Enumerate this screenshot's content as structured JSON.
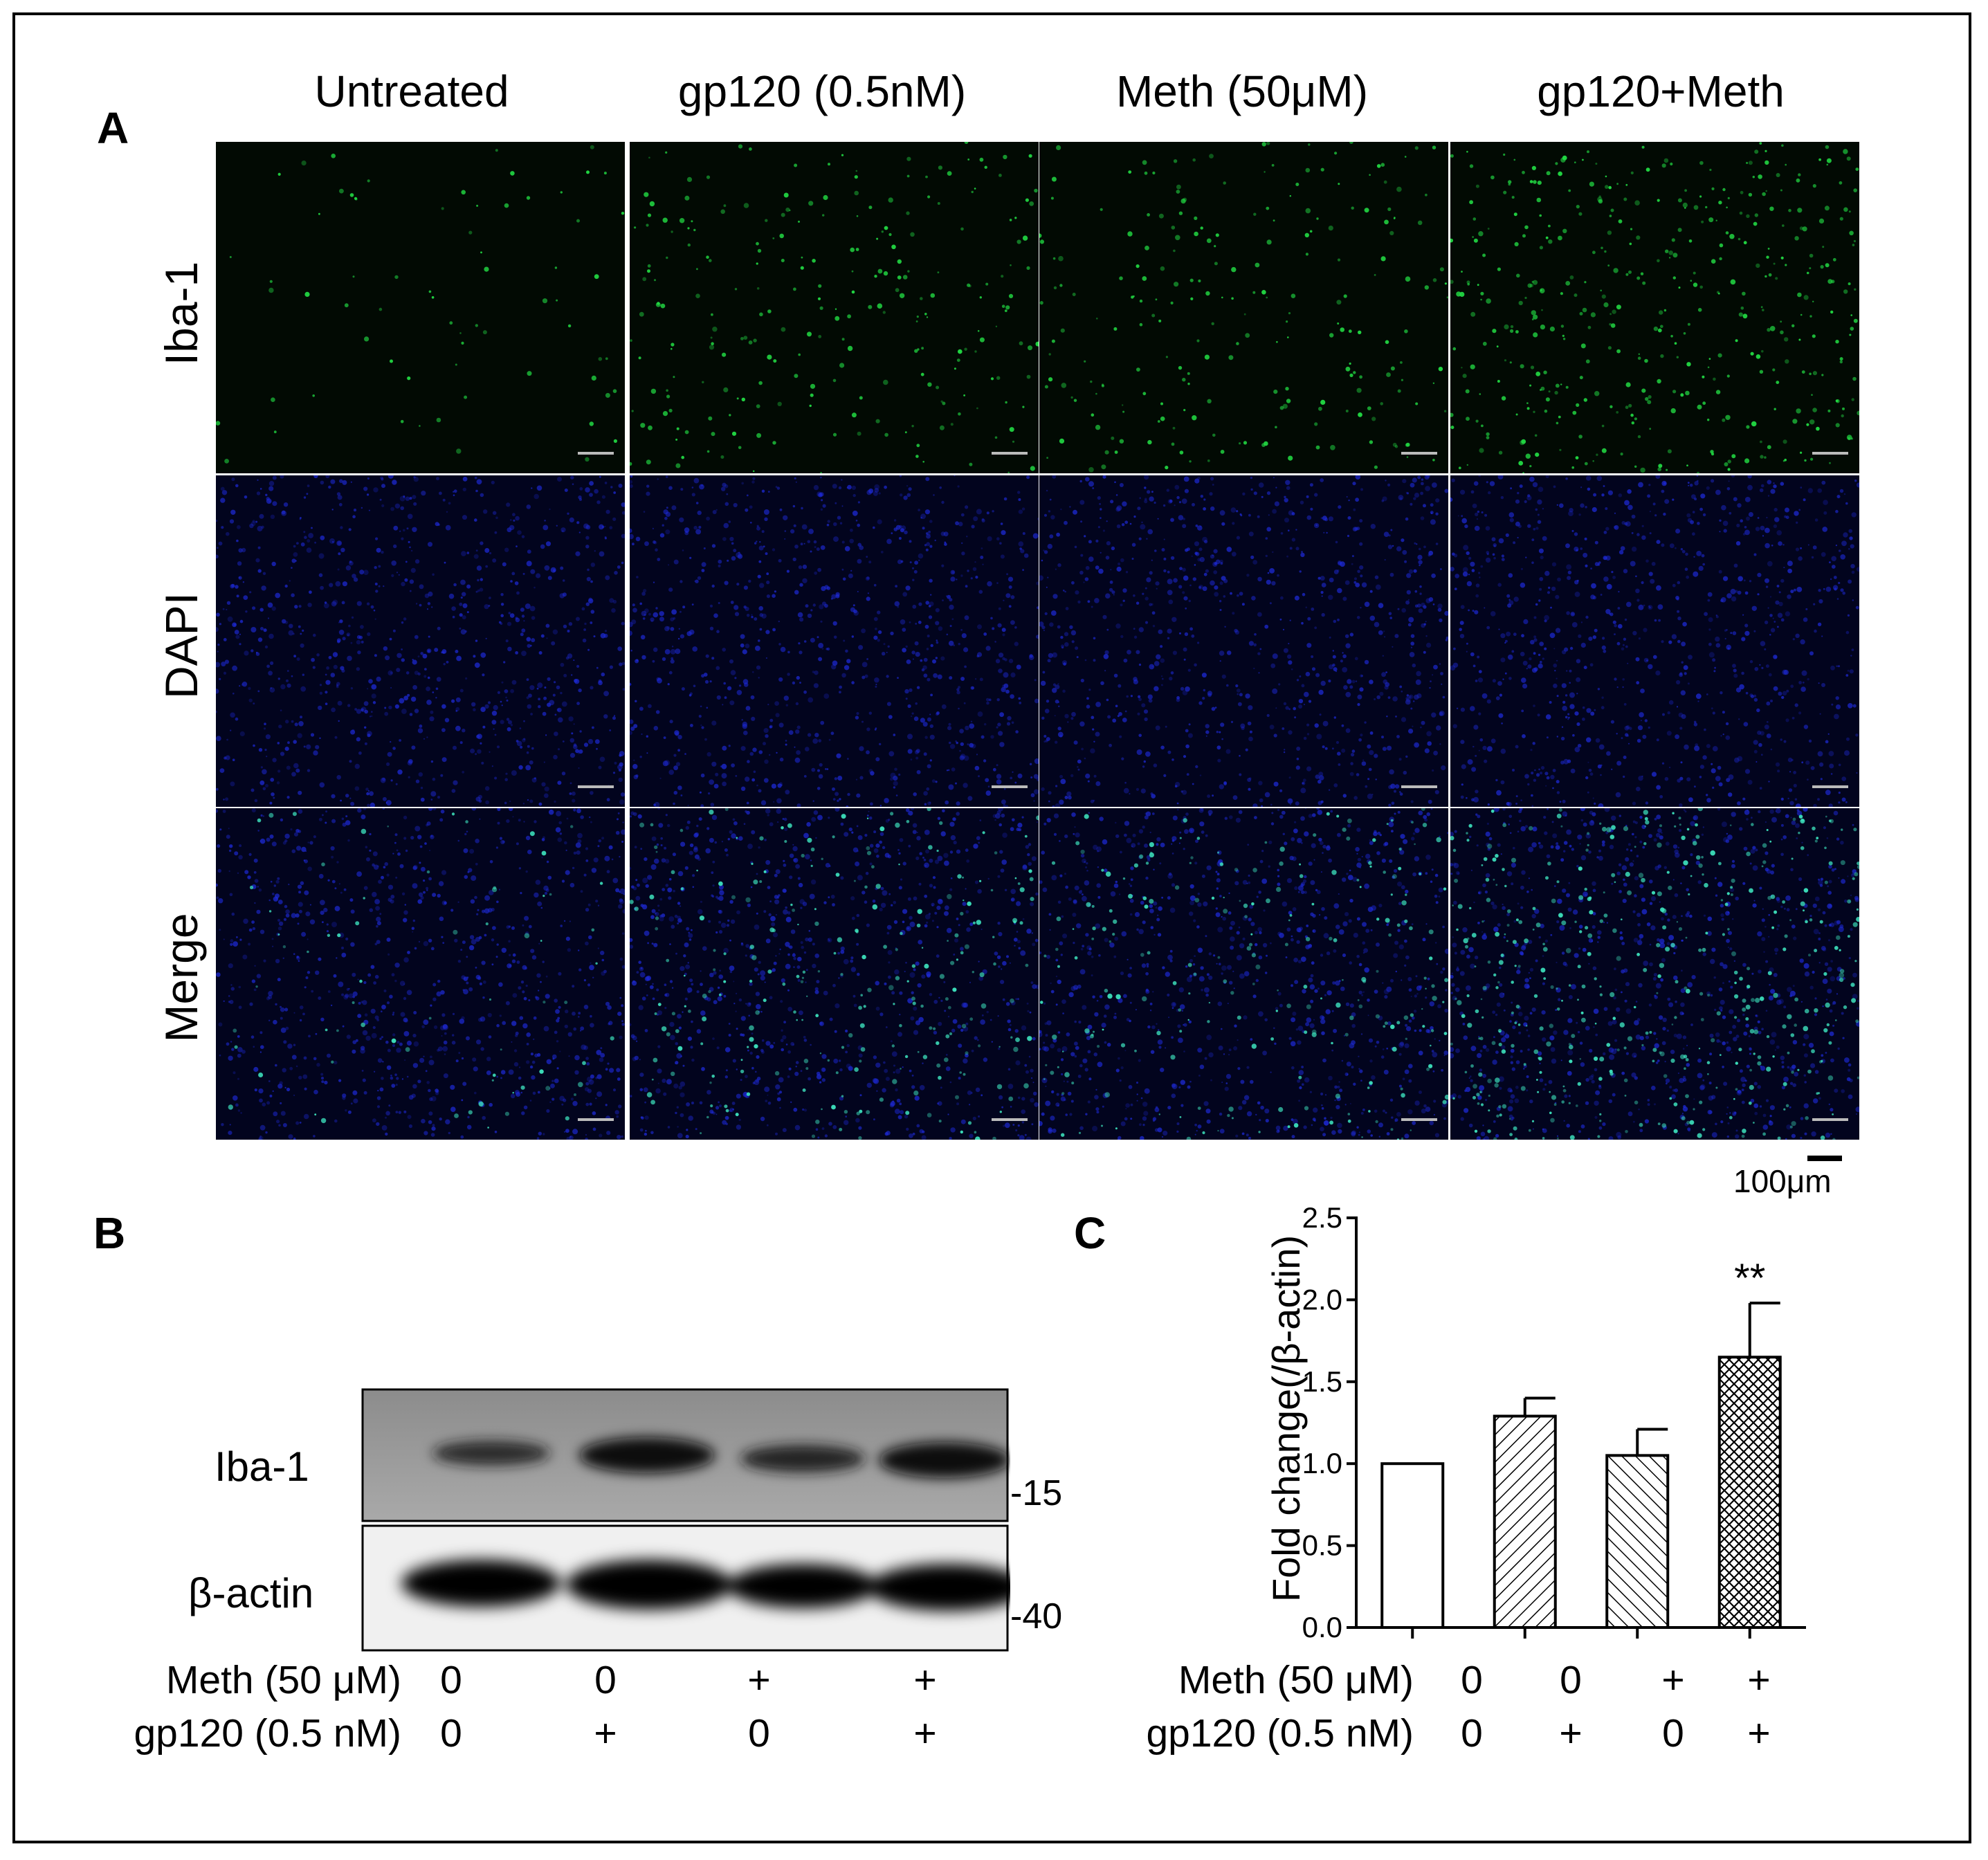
{
  "panels": {
    "a": {
      "letter": "A",
      "columns": [
        "Untreated",
        "gp120 (0.5nM)",
        "Meth (50μM)",
        "gp120+Meth"
      ],
      "rows": [
        "Iba-1",
        "DAPI",
        "Merge"
      ],
      "scale_bar_label": "100μm"
    },
    "b": {
      "letter": "B",
      "bands": [
        {
          "label": "Iba-1",
          "marker": "-15"
        },
        {
          "label": "β-actin",
          "marker": "-40"
        }
      ],
      "conditions": [
        {
          "label": "Meth (50 μM)",
          "values": [
            "0",
            "0",
            "+",
            "+"
          ]
        },
        {
          "label": "gp120 (0.5 nM)",
          "values": [
            "0",
            "+",
            "0",
            "+"
          ]
        }
      ]
    },
    "c": {
      "letter": "C",
      "conditions": [
        {
          "label": "Meth (50 μM)",
          "values": [
            "0",
            "0",
            "+",
            "+"
          ]
        },
        {
          "label": "gp120 (0.5 nM)",
          "values": [
            "0",
            "+",
            "0",
            "+"
          ]
        }
      ]
    }
  },
  "chart_data": {
    "type": "bar",
    "ylabel": "Fold change(/β-actin)",
    "ylim": [
      0,
      2.5
    ],
    "yticks": [
      "0.0",
      "0.5",
      "1.0",
      "1.5",
      "2.0",
      "2.5"
    ],
    "values": [
      1.0,
      1.29,
      1.05,
      1.65
    ],
    "errors": [
      0,
      0.11,
      0.16,
      0.33
    ],
    "patterns": [
      "none",
      "diagonal-up",
      "diagonal-down",
      "crosshatch"
    ],
    "annotations": [
      "",
      "",
      "",
      "**"
    ]
  },
  "colors": {
    "iba1": "#22dd44",
    "dapi": "#1e2ad8",
    "merge_cells": "#3ee6c0"
  }
}
